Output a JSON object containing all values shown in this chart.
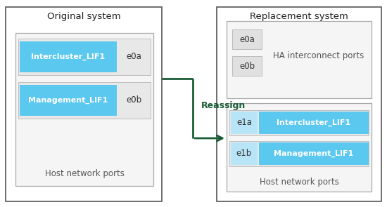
{
  "bg_color": "#ffffff",
  "outer_box_ec": "#555555",
  "inner_box_fc": "#f5f5f5",
  "inner_box_ec": "#aaaaaa",
  "lif_blue": "#5bc8f0",
  "lif_light_blue": "#b8e4f7",
  "port_row_fc": "#e8e8e8",
  "port_cell_fc": "#e0e0e0",
  "arrow_color": "#1a5c35",
  "text_dark": "#222222",
  "text_gray": "#555555",
  "orig_title": "Original system",
  "repl_title": "Replacement system",
  "lif1": "Intercluster_LIF1",
  "lif2": "Management_LIF1",
  "port_e0a": "e0a",
  "port_e0b": "e0b",
  "port_e1a": "e1a",
  "port_e1b": "e1b",
  "host_label": "Host network ports",
  "ha_label": "HA interconnect ports",
  "reassign_label": "Reassign"
}
